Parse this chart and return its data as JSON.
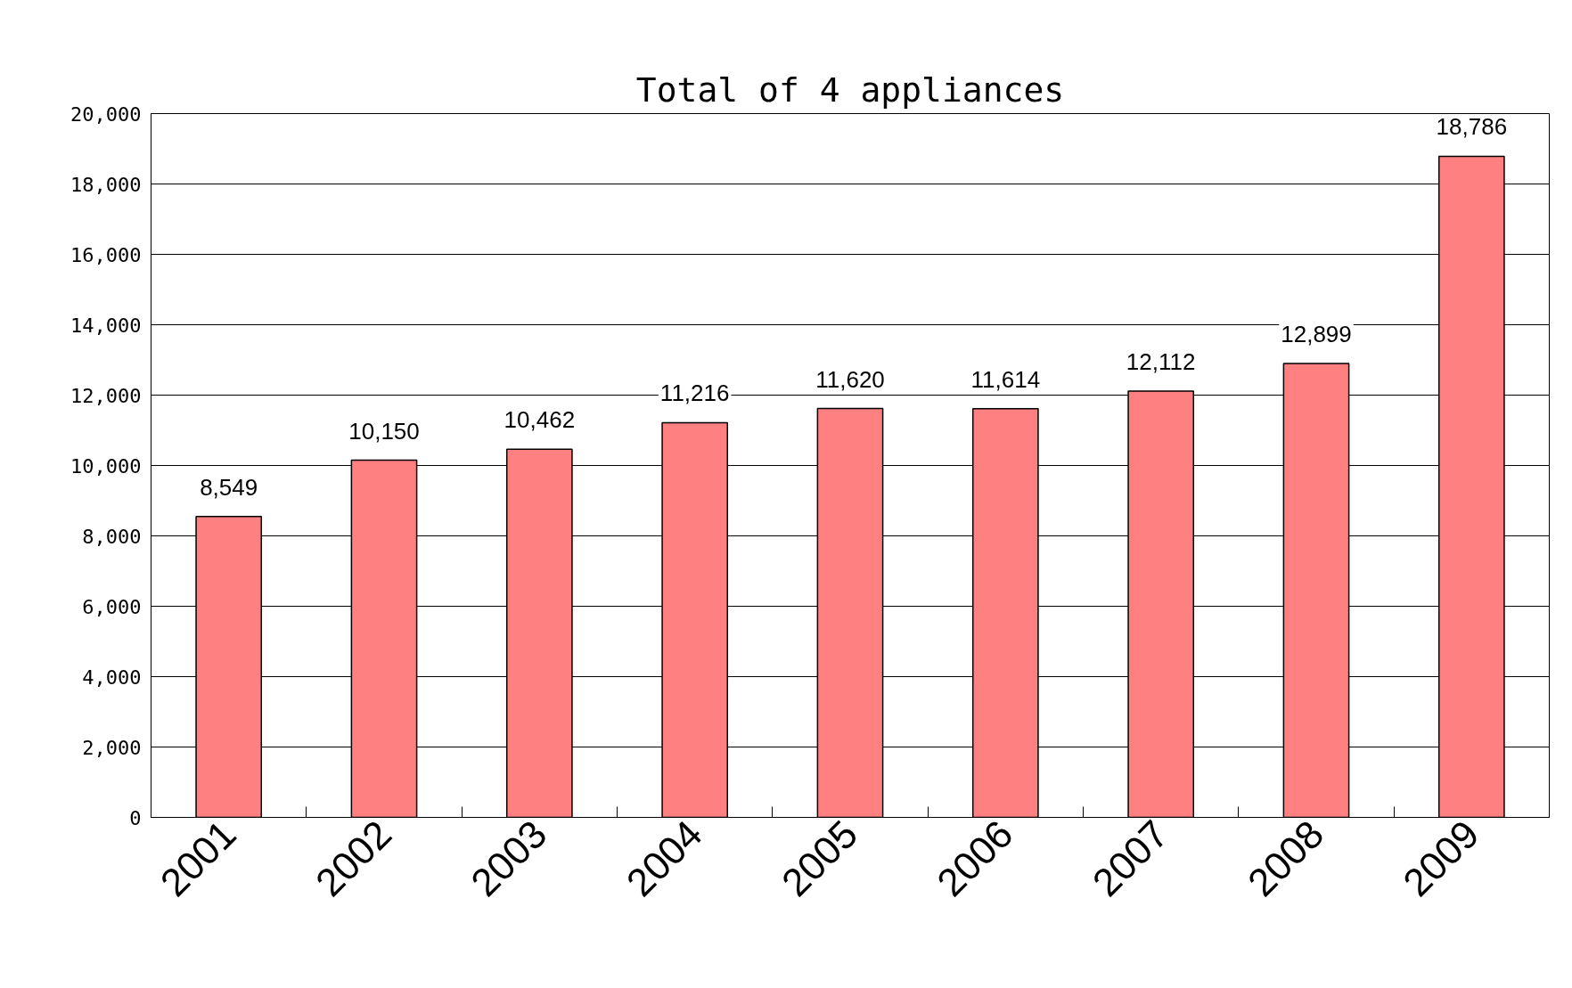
{
  "chart_data": {
    "type": "bar",
    "title": "Total of 4 appliances",
    "categories": [
      "2001",
      "2002",
      "2003",
      "2004",
      "2005",
      "2006",
      "2007",
      "2008",
      "2009"
    ],
    "values": [
      8549,
      10150,
      10462,
      11216,
      11620,
      11614,
      12112,
      12899,
      18786
    ],
    "value_labels": [
      "8,549",
      "10,150",
      "10,462",
      "11,216",
      "11,620",
      "11,614",
      "12,112",
      "12,899",
      "18,786"
    ],
    "color": "#ff8080",
    "ylim": [
      0,
      20000
    ],
    "yticks": [
      {
        "value": 0,
        "label": "0"
      },
      {
        "value": 2000,
        "label": "2,000"
      },
      {
        "value": 4000,
        "label": "4,000"
      },
      {
        "value": 6000,
        "label": "6,000"
      },
      {
        "value": 8000,
        "label": "8,000"
      },
      {
        "value": 10000,
        "label": "10,000"
      },
      {
        "value": 12000,
        "label": "12,000"
      },
      {
        "value": 14000,
        "label": "14,000"
      },
      {
        "value": 16000,
        "label": "16,000"
      },
      {
        "value": 18000,
        "label": "18,000"
      },
      {
        "value": 20000,
        "label": "20,000"
      }
    ],
    "grid": "y"
  }
}
